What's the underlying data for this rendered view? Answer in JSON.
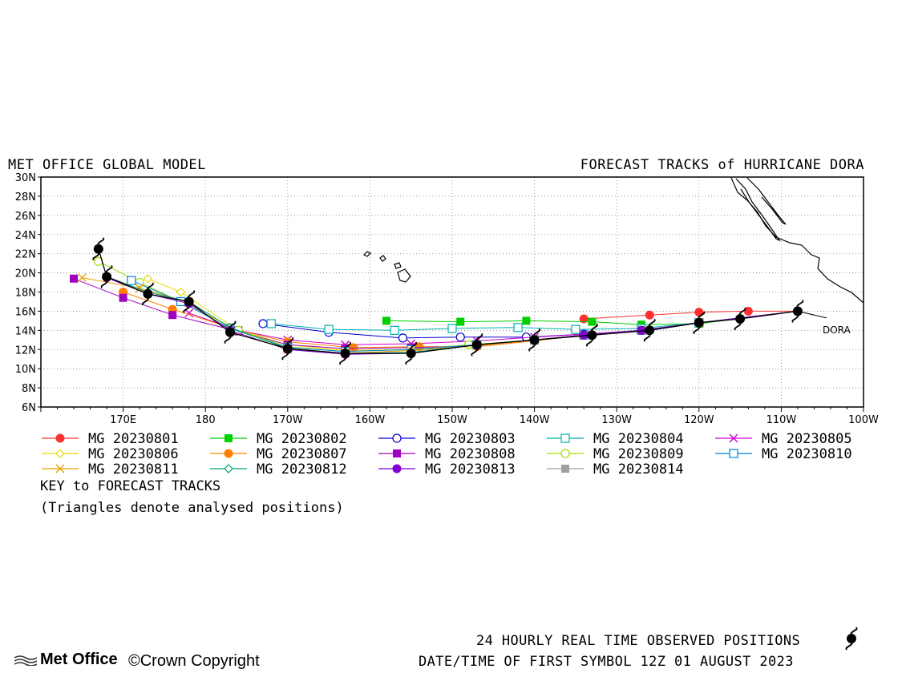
{
  "header": {
    "left_title": "MET OFFICE GLOBAL MODEL",
    "right_title": "FORECAST TRACKS of HURRICANE DORA"
  },
  "key": {
    "title": "KEY to FORECAST TRACKS",
    "note": "(Triangles denote analysed positions)"
  },
  "footer": {
    "observed": "24 HOURLY REAL TIME OBSERVED POSITIONS",
    "datetime": "DATE/TIME OF FIRST SYMBOL 12Z 01 AUGUST 2023",
    "logo": "Met Office",
    "copyright": "©Crown Copyright"
  },
  "chart_data": {
    "type": "line",
    "title": "FORECAST TRACKS of HURRICANE DORA",
    "storm_label": "DORA",
    "x_ticks": [
      "170E",
      "180",
      "170W",
      "160W",
      "150W",
      "140W",
      "130W",
      "120W",
      "110W",
      "100W"
    ],
    "y_ticks": [
      "30N",
      "28N",
      "26N",
      "24N",
      "22N",
      "20N",
      "18N",
      "16N",
      "14N",
      "12N",
      "10N",
      "8N",
      "6N"
    ],
    "xlim_lon_east": [
      160,
      260
    ],
    "ylim_lat": [
      6,
      30
    ],
    "grid": true,
    "observed_track": [
      [
        252,
        16
      ],
      [
        245,
        15.2
      ],
      [
        240,
        14.8
      ],
      [
        234,
        14.0
      ],
      [
        227,
        13.5
      ],
      [
        220,
        13.0
      ],
      [
        213,
        12.5
      ],
      [
        205,
        11.6
      ],
      [
        197,
        11.6
      ],
      [
        190,
        12.1
      ],
      [
        183,
        13.8
      ],
      [
        178,
        17.0
      ],
      [
        173,
        17.8
      ],
      [
        168,
        19.6
      ],
      [
        167,
        22.5
      ]
    ],
    "series": [
      {
        "name": "MG 20230801",
        "color": "#ff3030",
        "marker": "circle-filled",
        "points": [
          [
            252,
            16
          ],
          [
            246,
            16
          ],
          [
            240,
            15.9
          ],
          [
            234,
            15.6
          ],
          [
            226,
            15.2
          ]
        ]
      },
      {
        "name": "MG 20230802",
        "color": "#00d000",
        "marker": "square-filled",
        "points": [
          [
            252,
            16
          ],
          [
            240,
            14.7
          ],
          [
            233,
            14.6
          ],
          [
            227,
            14.9
          ],
          [
            219,
            15.0
          ],
          [
            211,
            14.9
          ],
          [
            202,
            15.0
          ]
        ]
      },
      {
        "name": "MG 20230803",
        "color": "#0000d0",
        "marker": "circle-open",
        "points": [
          [
            252,
            16
          ],
          [
            240,
            14.8
          ],
          [
            233,
            14.0
          ],
          [
            226,
            13.6
          ],
          [
            219,
            13.3
          ],
          [
            211,
            13.3
          ],
          [
            204,
            13.2
          ],
          [
            195,
            13.8
          ],
          [
            187,
            14.7
          ]
        ]
      },
      {
        "name": "MG 20230804",
        "color": "#00b0b0",
        "marker": "square-open",
        "points": [
          [
            252,
            16
          ],
          [
            240,
            14.8
          ],
          [
            233,
            14.2
          ],
          [
            225,
            14.1
          ],
          [
            218,
            14.3
          ],
          [
            210,
            14.2
          ],
          [
            203,
            14.0
          ],
          [
            195,
            14.1
          ],
          [
            188,
            14.7
          ]
        ]
      },
      {
        "name": "MG 20230805",
        "color": "#d000d0",
        "marker": "x",
        "points": [
          [
            252,
            16
          ],
          [
            240,
            14.8
          ],
          [
            233,
            14.0
          ],
          [
            226,
            13.6
          ],
          [
            220,
            13.3
          ],
          [
            213,
            12.9
          ],
          [
            205,
            12.6
          ],
          [
            197,
            12.5
          ],
          [
            190,
            13.0
          ],
          [
            184,
            14.0
          ],
          [
            178,
            15.8
          ]
        ]
      },
      {
        "name": "MG 20230806",
        "color": "#e8d800",
        "marker": "diamond-open",
        "points": [
          [
            252,
            16
          ],
          [
            240,
            14.8
          ],
          [
            233,
            14.0
          ],
          [
            226,
            13.5
          ],
          [
            220,
            13.0
          ],
          [
            213,
            12.4
          ],
          [
            205,
            12.0
          ],
          [
            197,
            11.9
          ],
          [
            190,
            12.5
          ],
          [
            184,
            14.0
          ],
          [
            177,
            18.0
          ],
          [
            173,
            19.4
          ]
        ]
      },
      {
        "name": "MG 20230807",
        "color": "#ff8000",
        "marker": "circle-filled",
        "points": [
          [
            252,
            16
          ],
          [
            240,
            14.8
          ],
          [
            233,
            14.0
          ],
          [
            226,
            13.5
          ],
          [
            220,
            12.9
          ],
          [
            213,
            12.3
          ],
          [
            206,
            12.3
          ],
          [
            198,
            12.2
          ],
          [
            190,
            12.8
          ],
          [
            184,
            14.0
          ],
          [
            176,
            16.2
          ],
          [
            170,
            18.0
          ]
        ]
      },
      {
        "name": "MG 20230808",
        "color": "#a000c0",
        "marker": "square-filled",
        "points": [
          [
            252,
            16
          ],
          [
            240,
            14.8
          ],
          [
            233,
            14.0
          ],
          [
            226,
            13.5
          ],
          [
            220,
            13.0
          ],
          [
            213,
            12.4
          ],
          [
            205,
            12.2
          ],
          [
            197,
            12.1
          ],
          [
            190,
            12.5
          ],
          [
            184,
            13.9
          ],
          [
            176,
            15.6
          ],
          [
            170,
            17.4
          ],
          [
            164,
            19.4
          ]
        ]
      },
      {
        "name": "MG 20230809",
        "color": "#a0e000",
        "marker": "circle-open",
        "points": [
          [
            252,
            16
          ],
          [
            240,
            14.8
          ],
          [
            233,
            14.0
          ],
          [
            226,
            13.5
          ],
          [
            220,
            13.0
          ],
          [
            212,
            12.5
          ],
          [
            205,
            12.0
          ],
          [
            197,
            11.8
          ],
          [
            190,
            12.3
          ],
          [
            184,
            14.0
          ],
          [
            177,
            17.0
          ],
          [
            172,
            19.0
          ],
          [
            167,
            21.2
          ]
        ]
      },
      {
        "name": "MG 20230810",
        "color": "#0080e0",
        "marker": "square-open",
        "points": [
          [
            252,
            16
          ],
          [
            240,
            14.8
          ],
          [
            233,
            14.0
          ],
          [
            226,
            13.5
          ],
          [
            220,
            13.0
          ],
          [
            213,
            12.5
          ],
          [
            205,
            12.0
          ],
          [
            197,
            11.8
          ],
          [
            190,
            12.2
          ],
          [
            183,
            14.2
          ],
          [
            177,
            17.0
          ],
          [
            171,
            19.2
          ]
        ]
      },
      {
        "name": "MG 20230811",
        "color": "#e8a000",
        "marker": "x",
        "points": [
          [
            252,
            16
          ],
          [
            240,
            14.8
          ],
          [
            233,
            14.0
          ],
          [
            226,
            13.5
          ],
          [
            220,
            13.0
          ],
          [
            213,
            12.4
          ],
          [
            205,
            11.9
          ],
          [
            197,
            11.6
          ],
          [
            190,
            12.0
          ],
          [
            183,
            14.0
          ],
          [
            178,
            16.9
          ],
          [
            172,
            18.4
          ],
          [
            165,
            19.5
          ]
        ]
      },
      {
        "name": "MG 20230812",
        "color": "#00a070",
        "marker": "diamond-open",
        "points": [
          [
            252,
            16
          ],
          [
            240,
            14.8
          ],
          [
            233,
            14.0
          ],
          [
            226,
            13.5
          ],
          [
            220,
            13.0
          ],
          [
            213,
            12.5
          ],
          [
            205,
            11.7
          ],
          [
            197,
            11.6
          ],
          [
            190,
            12.1
          ],
          [
            183,
            14.3
          ],
          [
            178,
            17.0
          ],
          [
            173,
            18.0
          ],
          [
            168,
            19.6
          ]
        ]
      },
      {
        "name": "MG 20230813",
        "color": "#8000d0",
        "marker": "circle-filled",
        "points": [
          [
            252,
            16
          ],
          [
            240,
            14.8
          ],
          [
            233,
            14.0
          ],
          [
            226,
            13.5
          ],
          [
            220,
            13.0
          ],
          [
            213,
            12.5
          ],
          [
            205,
            11.6
          ],
          [
            197,
            11.5
          ],
          [
            190,
            12.0
          ],
          [
            183,
            14.0
          ],
          [
            178,
            16.8
          ],
          [
            173,
            17.8
          ],
          [
            168,
            19.5
          ]
        ]
      },
      {
        "name": "MG 20230814",
        "color": "#a0a0a0",
        "marker": "square-filled",
        "points": []
      }
    ]
  }
}
